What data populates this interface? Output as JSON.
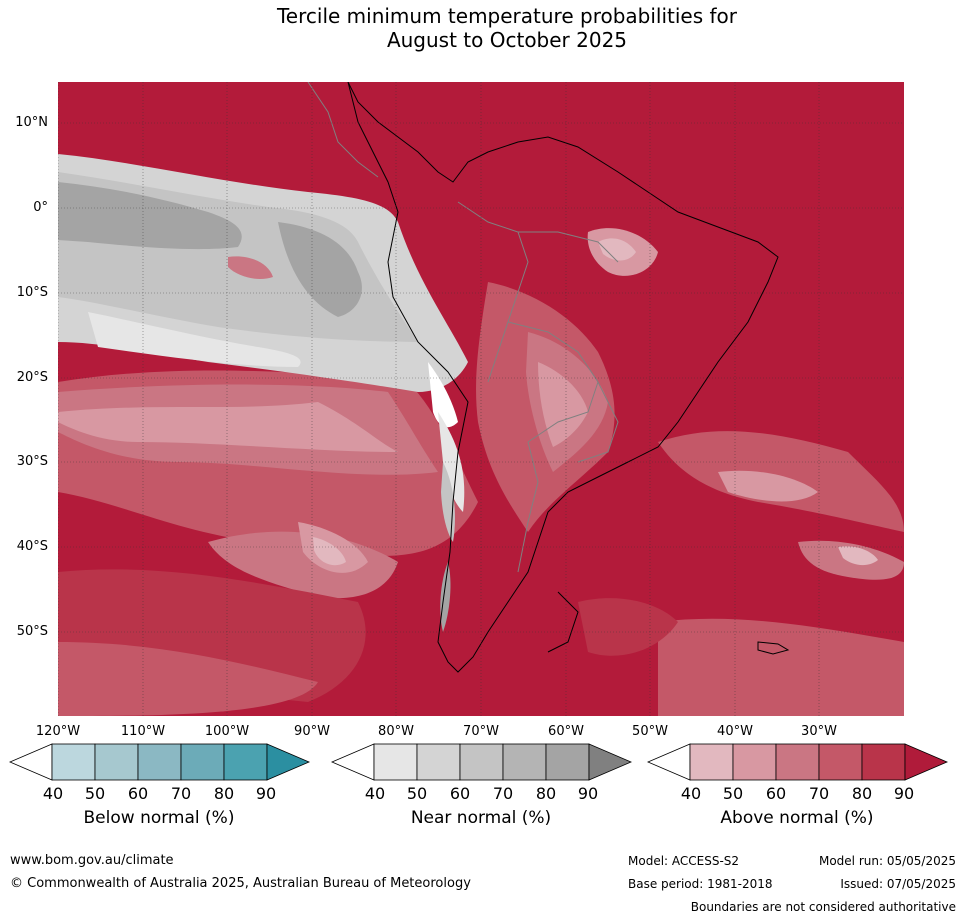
{
  "title": {
    "line1": "Tercile minimum temperature probabilities for",
    "line2": "August to October 2025"
  },
  "map": {
    "lat_labels": [
      "10°N",
      "0°",
      "10°S",
      "20°S",
      "30°S",
      "40°S",
      "50°S"
    ],
    "lon_labels": [
      "120°W",
      "110°W",
      "100°W",
      "90°W",
      "80°W",
      "70°W",
      "60°W",
      "50°W",
      "40°W",
      "30°W"
    ],
    "lat_range": [
      -60,
      15
    ],
    "lon_range": [
      -120,
      -20
    ],
    "ocean_color": "#b31b3a",
    "land_border_color": "#000000",
    "country_border_color": "#808080"
  },
  "legends": {
    "below": {
      "label": "Below normal (%)",
      "ticks": [
        "40",
        "50",
        "60",
        "70",
        "80",
        "90"
      ],
      "colors": [
        "#ffffff",
        "#bcd7de",
        "#a6c8cf",
        "#8bb8c3",
        "#6cabb8",
        "#4ba2b0",
        "#2b8fa1"
      ]
    },
    "near": {
      "label": "Near normal (%)",
      "ticks": [
        "40",
        "50",
        "60",
        "70",
        "80",
        "90"
      ],
      "colors": [
        "#ffffff",
        "#e6e6e6",
        "#d4d4d4",
        "#c4c4c4",
        "#b4b4b4",
        "#a4a4a4",
        "#808080"
      ]
    },
    "above": {
      "label": "Above normal (%)",
      "ticks": [
        "40",
        "50",
        "60",
        "70",
        "80",
        "90"
      ],
      "colors": [
        "#ffffff",
        "#e2b8bf",
        "#d898a2",
        "#ca7683",
        "#c45868",
        "#b9344a",
        "#b01b3a"
      ]
    }
  },
  "footer": {
    "website": "www.bom.gov.au/climate",
    "copyright": "© Commonwealth of Australia 2025, Australian Bureau of Meteorology",
    "model": "Model: ACCESS-S2",
    "model_run": "Model run: 05/05/2025",
    "base_period": "Base period: 1981-2018",
    "issued": "Issued: 07/05/2025",
    "disclaimer": "Boundaries are not considered authoritative"
  }
}
